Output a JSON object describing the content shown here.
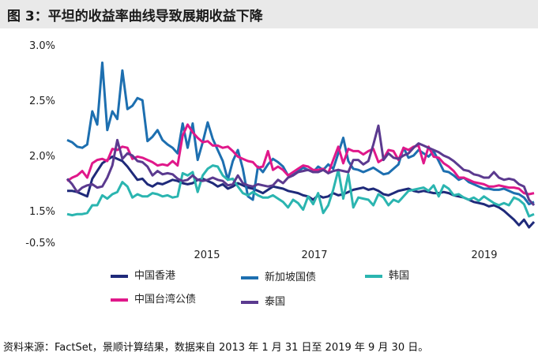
{
  "title": "图 3：平坦的收益率曲线导致展期收益下降",
  "source": "资料来源：FactSet，景顺计算结果，数据来自 2013 年 1 月 31 日至 2019 年 9 月 30 日。",
  "chart_data": {
    "type": "line",
    "title": "图 3：平坦的收益率曲线导致展期收益下降",
    "xlabel": "",
    "ylabel": "",
    "y_ticks": [
      "3.0%",
      "2.5%",
      "2.0%",
      "1.5%",
      "-0.5%"
    ],
    "x_ticks": [
      "2015",
      "2017",
      "2019"
    ],
    "x_range": [
      "2013-01",
      "2019-09"
    ],
    "legend": [
      "中国香港",
      "新加坡国债",
      "韩国",
      "中国台湾公债",
      "泰国"
    ],
    "series": [
      {
        "name": "中国香港",
        "color": "#1f2a7a",
        "values": [
          1.68,
          1.68,
          1.67,
          1.65,
          1.63,
          1.79,
          1.86,
          1.93,
          1.96,
          1.99,
          1.97,
          1.95,
          1.9,
          1.84,
          1.78,
          1.79,
          1.74,
          1.72,
          1.75,
          1.74,
          1.76,
          1.78,
          1.77,
          1.75,
          1.74,
          1.75,
          1.78,
          1.79,
          1.77,
          1.75,
          1.72,
          1.74,
          1.7,
          1.72,
          1.75,
          1.73,
          1.71,
          1.7,
          1.68,
          1.66,
          1.69,
          1.72,
          1.71,
          1.7,
          1.68,
          1.67,
          1.66,
          1.64,
          1.63,
          1.6,
          1.64,
          1.62,
          1.63,
          1.66,
          1.64,
          1.65,
          1.67,
          1.69,
          1.7,
          1.71,
          1.69,
          1.7,
          1.68,
          1.65,
          1.64,
          1.66,
          1.68,
          1.69,
          1.7,
          1.68,
          1.67,
          1.68,
          1.67,
          1.66,
          1.66,
          1.67,
          1.66,
          1.64,
          1.63,
          1.62,
          1.6,
          1.58,
          1.57,
          1.56,
          1.54,
          1.55,
          1.53,
          1.5,
          1.46,
          1.42,
          1.37,
          1.42,
          1.35,
          1.4
        ]
      },
      {
        "name": "新加坡国债",
        "color": "#1d6fb0",
        "values": [
          2.14,
          2.12,
          2.08,
          2.07,
          2.1,
          2.4,
          2.28,
          2.84,
          2.23,
          2.4,
          2.33,
          2.77,
          2.42,
          2.45,
          2.52,
          2.5,
          2.13,
          2.17,
          2.23,
          2.14,
          2.1,
          2.07,
          2.02,
          2.29,
          2.07,
          2.29,
          1.96,
          2.12,
          2.3,
          2.15,
          2.05,
          1.95,
          1.78,
          1.95,
          2.05,
          1.88,
          1.63,
          1.6,
          1.9,
          1.85,
          1.92,
          1.97,
          1.94,
          1.9,
          1.82,
          1.84,
          1.86,
          1.89,
          1.87,
          1.85,
          1.9,
          1.87,
          1.92,
          1.88,
          2.02,
          2.16,
          1.95,
          1.88,
          1.87,
          1.85,
          1.87,
          1.89,
          1.86,
          1.83,
          1.84,
          1.88,
          1.92,
          2.07,
          1.98,
          2.0,
          2.05,
          2.02,
          1.99,
          2.04,
          1.95,
          1.86,
          1.85,
          1.82,
          1.78,
          1.8,
          1.76,
          1.74,
          1.72,
          1.7,
          1.7,
          1.69,
          1.69,
          1.7,
          1.68,
          1.66,
          1.65,
          1.62,
          1.56,
          1.58
        ]
      },
      {
        "name": "韩国",
        "color": "#2bb5b0",
        "values": [
          1.47,
          1.46,
          1.47,
          1.47,
          1.48,
          1.55,
          1.55,
          1.64,
          1.61,
          1.65,
          1.67,
          1.76,
          1.72,
          1.62,
          1.65,
          1.63,
          1.63,
          1.66,
          1.65,
          1.63,
          1.64,
          1.62,
          1.63,
          1.84,
          1.82,
          1.85,
          1.67,
          1.82,
          1.88,
          1.91,
          1.9,
          1.82,
          1.78,
          1.79,
          1.72,
          1.66,
          1.64,
          1.67,
          1.64,
          1.62,
          1.62,
          1.64,
          1.61,
          1.58,
          1.53,
          1.6,
          1.57,
          1.51,
          1.63,
          1.56,
          1.66,
          1.48,
          1.55,
          1.69,
          1.87,
          1.61,
          1.83,
          1.53,
          1.62,
          1.61,
          1.6,
          1.55,
          1.65,
          1.62,
          1.55,
          1.6,
          1.58,
          1.63,
          1.68,
          1.69,
          1.7,
          1.71,
          1.68,
          1.73,
          1.63,
          1.73,
          1.7,
          1.64,
          1.65,
          1.62,
          1.6,
          1.62,
          1.59,
          1.63,
          1.6,
          1.57,
          1.55,
          1.57,
          1.55,
          1.62,
          1.6,
          1.56,
          1.45,
          1.47
        ]
      },
      {
        "name": "中国台湾公债",
        "color": "#e0188a",
        "values": [
          1.77,
          1.8,
          1.82,
          1.86,
          1.8,
          1.93,
          1.96,
          1.97,
          1.95,
          2.06,
          2.05,
          2.08,
          2.07,
          1.97,
          1.99,
          1.98,
          1.96,
          1.94,
          1.91,
          1.92,
          1.91,
          1.95,
          1.91,
          2.18,
          2.28,
          2.21,
          2.16,
          2.12,
          2.13,
          2.09,
          2.09,
          2.07,
          2.08,
          2.04,
          1.99,
          1.97,
          1.95,
          1.94,
          1.89,
          1.9,
          2.04,
          1.87,
          1.9,
          1.87,
          1.82,
          1.85,
          1.88,
          1.91,
          1.9,
          1.87,
          1.87,
          1.88,
          1.84,
          1.96,
          2.08,
          1.93,
          2.06,
          2.04,
          2.04,
          2.01,
          2.04,
          2.06,
          1.94,
          1.97,
          2.05,
          2.04,
          1.96,
          2.07,
          2.05,
          2.08,
          2.09,
          1.93,
          2.08,
          1.99,
          1.98,
          1.93,
          1.9,
          1.86,
          1.8,
          1.8,
          1.78,
          1.76,
          1.75,
          1.74,
          1.72,
          1.72,
          1.73,
          1.72,
          1.71,
          1.71,
          1.7,
          1.66,
          1.65,
          1.66
        ]
      },
      {
        "name": "泰国",
        "color": "#5b3a8f",
        "values": [
          1.79,
          1.74,
          1.67,
          1.71,
          1.73,
          1.74,
          1.71,
          1.72,
          1.8,
          1.91,
          2.14,
          1.97,
          2.02,
          2.0,
          1.95,
          1.94,
          1.9,
          1.82,
          1.86,
          1.83,
          1.84,
          1.83,
          1.79,
          1.77,
          1.78,
          1.82,
          1.78,
          1.77,
          1.78,
          1.8,
          1.78,
          1.77,
          1.73,
          1.74,
          1.82,
          1.75,
          1.73,
          1.72,
          1.74,
          1.73,
          1.72,
          1.73,
          1.78,
          1.75,
          1.8,
          1.82,
          1.85,
          1.86,
          1.87,
          1.85,
          1.85,
          1.87,
          1.84,
          1.86,
          1.87,
          1.86,
          1.85,
          1.96,
          1.96,
          1.92,
          1.95,
          2.1,
          2.27,
          1.96,
          2.02,
          1.98,
          1.97,
          2.0,
          2.02,
          2.07,
          2.11,
          2.09,
          2.07,
          2.05,
          2.03,
          2.0,
          1.98,
          1.95,
          1.91,
          1.87,
          1.86,
          1.83,
          1.82,
          1.8,
          1.8,
          1.85,
          1.8,
          1.78,
          1.79,
          1.78,
          1.74,
          1.72,
          1.6,
          1.55
        ]
      }
    ]
  }
}
